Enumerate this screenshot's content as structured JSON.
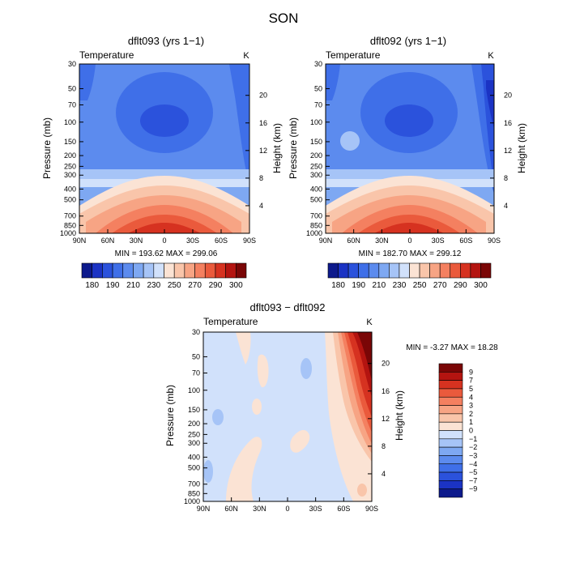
{
  "chart_data": {
    "type": "heatmap",
    "title": "SON",
    "panels": [
      {
        "id": "p1",
        "title": "dflt093 (yrs 1−1)",
        "field": "Temperature",
        "units": "K",
        "ylabel_left": "Pressure (mb)",
        "ylabel_right": "Height (km)",
        "pressure_ticks": [
          "30",
          "50",
          "70",
          "100",
          "150",
          "200",
          "250",
          "300",
          "400",
          "500",
          "700",
          "850",
          "1000"
        ],
        "height_ticks": [
          "20",
          "16",
          "12",
          "8",
          "4"
        ],
        "lat_ticks": [
          "90N",
          "60N",
          "30N",
          "0",
          "30S",
          "60S",
          "90S"
        ],
        "min_max": "MIN = 193.62   MAX = 299.06",
        "mode": "abs",
        "range": [
          193.62,
          299.06
        ]
      },
      {
        "id": "p2",
        "title": "dflt092 (yrs 1−1)",
        "field": "Temperature",
        "units": "K",
        "ylabel_left": "Pressure (mb)",
        "ylabel_right": "Height (km)",
        "pressure_ticks": [
          "30",
          "50",
          "70",
          "100",
          "150",
          "200",
          "250",
          "300",
          "400",
          "500",
          "700",
          "850",
          "1000"
        ],
        "height_ticks": [
          "20",
          "16",
          "12",
          "8",
          "4"
        ],
        "lat_ticks": [
          "90N",
          "60N",
          "30N",
          "0",
          "30S",
          "60S",
          "90S"
        ],
        "min_max": "MIN = 182.70   MAX = 299.12",
        "mode": "abs",
        "range": [
          182.7,
          299.12
        ]
      },
      {
        "id": "p3",
        "title": "dflt093 − dflt092",
        "field": "Temperature",
        "units": "K",
        "ylabel_left": "Pressure (mb)",
        "ylabel_right": "Height (km)",
        "pressure_ticks": [
          "30",
          "50",
          "70",
          "100",
          "150",
          "200",
          "250",
          "300",
          "400",
          "500",
          "700",
          "850",
          "1000"
        ],
        "height_ticks": [
          "20",
          "16",
          "12",
          "8",
          "4"
        ],
        "lat_ticks": [
          "90N",
          "60N",
          "30N",
          "0",
          "30S",
          "60S",
          "90S"
        ],
        "min_max": "MIN =   -3.27   MAX =   18.28",
        "mode": "diff",
        "range": [
          -3.27,
          18.28
        ]
      }
    ],
    "abs_colorbar": {
      "colors": [
        "#0d1a8c",
        "#1b33c4",
        "#2b52dc",
        "#3f6fe8",
        "#5c8bee",
        "#7ea8f2",
        "#a6c4f7",
        "#d1e1fb",
        "#fbe3d4",
        "#f9c5aa",
        "#f7a484",
        "#f48060",
        "#ea5a3c",
        "#d63220",
        "#b41410",
        "#7a0606"
      ],
      "labels": [
        "180",
        "190",
        "210",
        "230",
        "250",
        "270",
        "290",
        "300"
      ]
    },
    "diff_colorbar": {
      "colors": [
        "#7a0606",
        "#b41410",
        "#d63220",
        "#ea5a3c",
        "#f48060",
        "#f7a484",
        "#f9c5aa",
        "#fbe3d4",
        "#d1e1fb",
        "#a6c4f7",
        "#7ea8f2",
        "#5c8bee",
        "#3f6fe8",
        "#2b52dc",
        "#1b33c4",
        "#0d1a8c"
      ],
      "labels": [
        "9",
        "7",
        "5",
        "4",
        "3",
        "2",
        "1",
        "0",
        "−1",
        "−2",
        "−3",
        "−4",
        "−5",
        "−7",
        "−9"
      ]
    }
  }
}
